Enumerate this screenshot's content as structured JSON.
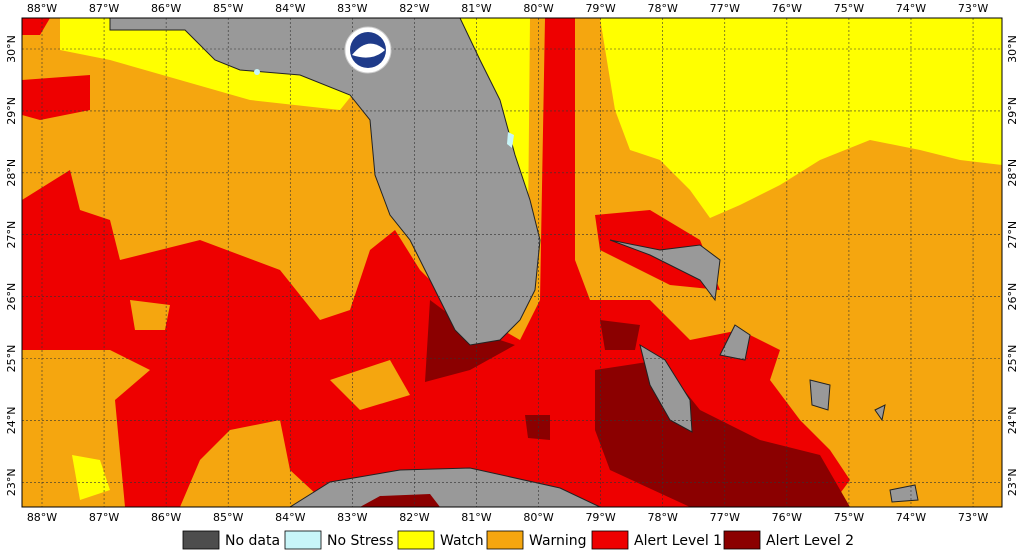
{
  "map": {
    "lon_ticks": [
      "88°W",
      "87°W",
      "86°W",
      "85°W",
      "84°W",
      "83°W",
      "82°W",
      "81°W",
      "80°W",
      "79°W",
      "78°W",
      "77°W",
      "76°W",
      "75°W",
      "74°W",
      "73°W"
    ],
    "lat_ticks": [
      "30°N",
      "29°N",
      "28°N",
      "27°N",
      "26°N",
      "25°N",
      "24°N",
      "23°N"
    ],
    "logo": "NOAA"
  },
  "legend": [
    {
      "label": "No data",
      "color": "#4d4d4d"
    },
    {
      "label": "No Stress",
      "color": "#c8f5f8"
    },
    {
      "label": "Watch",
      "color": "#ffff00"
    },
    {
      "label": "Warning",
      "color": "#f5a60f"
    },
    {
      "label": "Alert Level 1",
      "color": "#ee0000"
    },
    {
      "label": "Alert Level 2",
      "color": "#8b0000"
    }
  ]
}
